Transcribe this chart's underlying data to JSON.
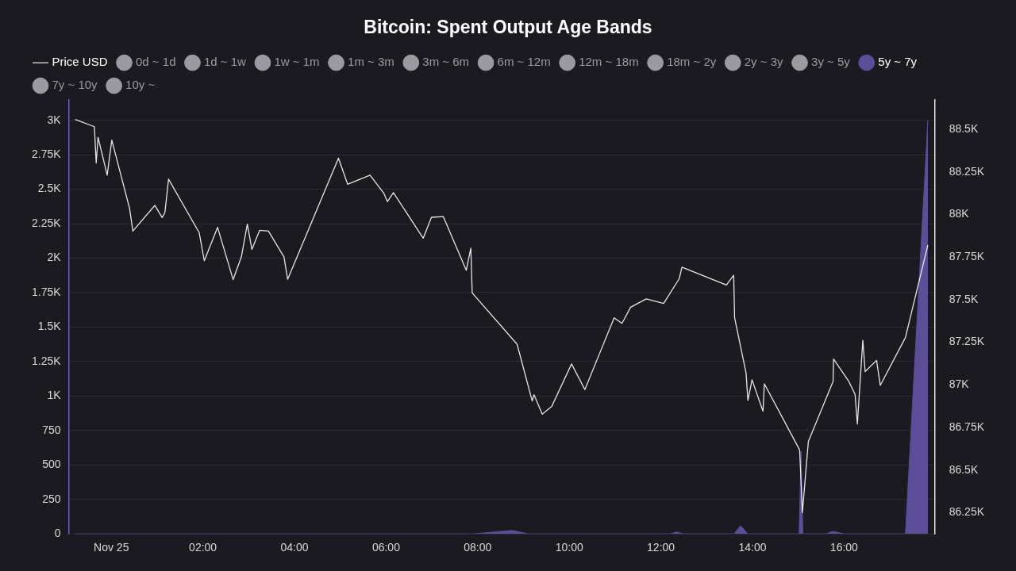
{
  "chart_data": {
    "type": "line",
    "title": "Bitcoin: Spent Output Age Bands",
    "legend": "top",
    "grid": "y",
    "xlim": [
      -0.93,
      17.98
    ],
    "xticks": [
      {
        "value": 0,
        "label": "Nov 25"
      },
      {
        "value": 2,
        "label": "02:00"
      },
      {
        "value": 4,
        "label": "04:00"
      },
      {
        "value": 6,
        "label": "06:00"
      },
      {
        "value": 8,
        "label": "08:00"
      },
      {
        "value": 10,
        "label": "10:00"
      },
      {
        "value": 12,
        "label": "12:00"
      },
      {
        "value": 14,
        "label": "14:00"
      },
      {
        "value": 16,
        "label": "16:00"
      }
    ],
    "ylim": [
      0,
      3150
    ],
    "yticks": [
      0,
      250,
      500,
      750,
      {
        "value": 1000,
        "label": "1K"
      },
      {
        "value": 1250,
        "label": "1.25K"
      },
      {
        "value": 1500,
        "label": "1.5K"
      },
      {
        "value": 1750,
        "label": "1.75K"
      },
      {
        "value": 2000,
        "label": "2K"
      },
      {
        "value": 2250,
        "label": "2.25K"
      },
      {
        "value": 2500,
        "label": "2.5K"
      },
      {
        "value": 2750,
        "label": "2.75K"
      },
      {
        "value": 3000,
        "label": "3K"
      }
    ],
    "y2lim": [
      86125,
      88675
    ],
    "y2ticks": [
      {
        "value": 86250,
        "label": "86.25K"
      },
      {
        "value": 86500,
        "label": "86.5K"
      },
      {
        "value": 86750,
        "label": "86.75K"
      },
      {
        "value": 87000,
        "label": "87K"
      },
      {
        "value": 87250,
        "label": "87.25K"
      },
      {
        "value": 87500,
        "label": "87.5K"
      },
      {
        "value": 87750,
        "label": "87.75K"
      },
      {
        "value": 88000,
        "label": "88K"
      },
      {
        "value": 88250,
        "label": "88.25K"
      },
      {
        "value": 88500,
        "label": "88.5K"
      }
    ],
    "series": [
      {
        "name": "Price USD",
        "type": "line",
        "axis": "y2",
        "color": "#e6e6e6",
        "x": [
          -0.79,
          -0.37,
          -0.33,
          -0.29,
          -0.09,
          0.01,
          0.4,
          0.47,
          0.95,
          1.11,
          1.17,
          1.25,
          1.92,
          2.03,
          2.32,
          2.66,
          2.84,
          2.97,
          3.07,
          3.24,
          3.43,
          3.77,
          3.85,
          4.96,
          5.16,
          5.65,
          5.95,
          6.03,
          6.16,
          6.81,
          6.99,
          7.25,
          7.75,
          7.85,
          7.88,
          8.86,
          9.19,
          9.23,
          9.41,
          9.62,
          10.05,
          10.34,
          10.98,
          11.15,
          11.34,
          11.68,
          12.06,
          12.4,
          12.46,
          13.43,
          13.59,
          13.61,
          13.86,
          13.9,
          13.99,
          14.23,
          14.26,
          15.03,
          15.09,
          15.22,
          15.76,
          15.77,
          16.1,
          16.24,
          16.29,
          16.41,
          16.46,
          16.71,
          16.79,
          17.34,
          17.83
        ],
        "values": [
          88558,
          88516,
          88303,
          88454,
          88231,
          88437,
          88035,
          87903,
          88054,
          87982,
          88012,
          88208,
          87893,
          87729,
          87925,
          87618,
          87752,
          87944,
          87795,
          87908,
          87903,
          87752,
          87620,
          88331,
          88178,
          88231,
          88125,
          88076,
          88129,
          87861,
          87984,
          87988,
          87673,
          87803,
          87540,
          87239,
          86905,
          86942,
          86828,
          86875,
          87123,
          86972,
          87394,
          87361,
          87456,
          87505,
          87478,
          87623,
          87691,
          87586,
          87643,
          87394,
          87070,
          86909,
          87030,
          86845,
          87006,
          86618,
          86250,
          86667,
          87020,
          87152,
          87022,
          86944,
          86770,
          87262,
          87078,
          87144,
          86997,
          87278,
          87821
        ]
      },
      {
        "name": "0d ~ 1d",
        "color": "#9b9aa0"
      },
      {
        "name": "1d ~ 1w",
        "color": "#9b9aa0"
      },
      {
        "name": "1w ~ 1m",
        "color": "#9b9aa0"
      },
      {
        "name": "1m ~ 3m",
        "color": "#9b9aa0"
      },
      {
        "name": "3m ~ 6m",
        "color": "#9b9aa0"
      },
      {
        "name": "6m ~ 12m",
        "color": "#9b9aa0"
      },
      {
        "name": "12m ~ 18m",
        "color": "#9b9aa0"
      },
      {
        "name": "18m ~ 2y",
        "color": "#9b9aa0"
      },
      {
        "name": "2y ~ 3y",
        "color": "#9b9aa0"
      },
      {
        "name": "3y ~ 5y",
        "color": "#9b9aa0"
      },
      {
        "name": "5y ~ 7y",
        "type": "area",
        "axis": "y",
        "color": "#5c4d99",
        "x": [
          -0.79,
          7.9,
          8.75,
          9.1,
          12.2,
          12.34,
          12.5,
          13.6,
          13.74,
          13.9,
          15.02,
          15.06,
          15.1,
          15.6,
          15.76,
          16.0,
          17.34,
          17.83
        ],
        "values": [
          0,
          0,
          25,
          0,
          0,
          14,
          0,
          0,
          60,
          0,
          0,
          600,
          0,
          0,
          19,
          0,
          0,
          3000
        ]
      },
      {
        "name": "7y ~ 10y",
        "color": "#9b9aa0"
      },
      {
        "name": "10y ~",
        "color": "#9b9aa0"
      }
    ]
  }
}
